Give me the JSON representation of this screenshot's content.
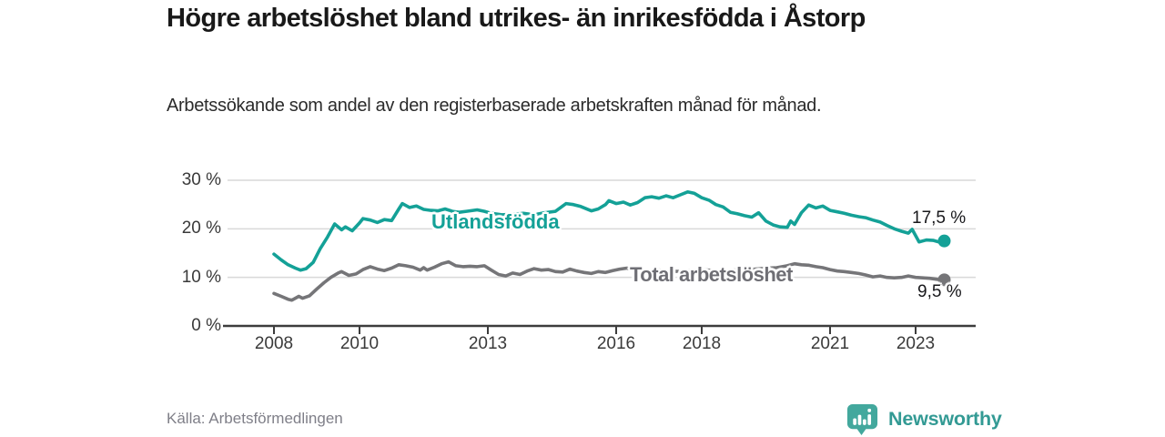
{
  "title": "Högre arbetslöshet bland utrikes- än inrikesfödda i Åstorp",
  "subtitle": "Arbetssökande som andel av den registerbaserade arbetskraften månad för månad.",
  "source": "Källa: Arbetsförmedlingen",
  "branding": {
    "name": "Newsworthy",
    "logo_icon": "bar-chart-speech-bubble-icon",
    "wordmark_color": "#339a94",
    "icon_color": "#43a89d"
  },
  "colors": {
    "foreign_born_line": "#14a197",
    "total_line": "#757578",
    "grid": "#d9d9d9",
    "axis": "#3d3d3d",
    "tick_text": "#3a3a3a",
    "end_label_text": "#17171a"
  },
  "chart_data": {
    "type": "line",
    "title": "Högre arbetslöshet bland utrikes- än inrikesfödda i Åstorp",
    "xlabel": "",
    "ylabel": "Arbetssökande som andel av den registerbaserade arbetskraften",
    "grid": true,
    "legend_position": "inline-labels",
    "ylim": [
      0,
      30
    ],
    "xlim": [
      2007.55,
      2024.35
    ],
    "yticks": [
      {
        "value": 0,
        "label": "0 %"
      },
      {
        "value": 10,
        "label": "10 %"
      },
      {
        "value": 20,
        "label": "20 %"
      },
      {
        "value": 30,
        "label": "30 %"
      }
    ],
    "xticks": [
      {
        "value": 2008,
        "label": "2008"
      },
      {
        "value": 2010,
        "label": "2010"
      },
      {
        "value": 2013,
        "label": "2013"
      },
      {
        "value": 2016,
        "label": "2016"
      },
      {
        "value": 2018,
        "label": "2018"
      },
      {
        "value": 2021,
        "label": "2021"
      },
      {
        "value": 2023,
        "label": "2023"
      }
    ],
    "series": [
      {
        "id": "utlandsfodda",
        "name": "Utlandsfödda",
        "color": "#14a197",
        "end_value_label": "17,5 %",
        "end_value": 17.5,
        "points": [
          [
            2008.0,
            14.8
          ],
          [
            2008.17,
            13.6
          ],
          [
            2008.33,
            12.6
          ],
          [
            2008.5,
            11.9
          ],
          [
            2008.62,
            11.5
          ],
          [
            2008.75,
            11.8
          ],
          [
            2008.92,
            13.1
          ],
          [
            2009.08,
            15.9
          ],
          [
            2009.25,
            18.3
          ],
          [
            2009.42,
            21.0
          ],
          [
            2009.58,
            19.8
          ],
          [
            2009.67,
            20.4
          ],
          [
            2009.83,
            19.6
          ],
          [
            2010.0,
            21.2
          ],
          [
            2010.08,
            22.1
          ],
          [
            2010.25,
            21.8
          ],
          [
            2010.42,
            21.3
          ],
          [
            2010.58,
            21.9
          ],
          [
            2010.75,
            21.7
          ],
          [
            2010.92,
            24.1
          ],
          [
            2011.0,
            25.2
          ],
          [
            2011.17,
            24.4
          ],
          [
            2011.33,
            24.7
          ],
          [
            2011.5,
            24.0
          ],
          [
            2011.67,
            23.8
          ],
          [
            2011.83,
            23.7
          ],
          [
            2012.0,
            24.1
          ],
          [
            2012.17,
            23.6
          ],
          [
            2012.33,
            23.4
          ],
          [
            2012.5,
            23.6
          ],
          [
            2012.75,
            23.9
          ],
          [
            2012.92,
            23.6
          ],
          [
            2013.08,
            23.2
          ],
          [
            2013.33,
            22.9
          ],
          [
            2013.58,
            23.0
          ],
          [
            2013.83,
            23.2
          ],
          [
            2014.08,
            22.9
          ],
          [
            2014.33,
            23.3
          ],
          [
            2014.58,
            23.6
          ],
          [
            2014.83,
            25.2
          ],
          [
            2015.0,
            25.0
          ],
          [
            2015.17,
            24.6
          ],
          [
            2015.42,
            23.7
          ],
          [
            2015.58,
            24.1
          ],
          [
            2015.75,
            25.0
          ],
          [
            2015.83,
            25.8
          ],
          [
            2016.0,
            25.2
          ],
          [
            2016.17,
            25.5
          ],
          [
            2016.33,
            24.9
          ],
          [
            2016.5,
            25.4
          ],
          [
            2016.67,
            26.4
          ],
          [
            2016.83,
            26.6
          ],
          [
            2017.0,
            26.3
          ],
          [
            2017.17,
            26.8
          ],
          [
            2017.33,
            26.4
          ],
          [
            2017.5,
            27.0
          ],
          [
            2017.67,
            27.6
          ],
          [
            2017.83,
            27.3
          ],
          [
            2018.0,
            26.4
          ],
          [
            2018.17,
            25.9
          ],
          [
            2018.33,
            25.0
          ],
          [
            2018.5,
            24.5
          ],
          [
            2018.67,
            23.4
          ],
          [
            2018.83,
            23.1
          ],
          [
            2019.0,
            22.7
          ],
          [
            2019.17,
            22.4
          ],
          [
            2019.33,
            23.3
          ],
          [
            2019.5,
            21.6
          ],
          [
            2019.67,
            20.8
          ],
          [
            2019.83,
            20.4
          ],
          [
            2020.0,
            20.3
          ],
          [
            2020.08,
            21.6
          ],
          [
            2020.17,
            20.9
          ],
          [
            2020.33,
            23.3
          ],
          [
            2020.5,
            24.9
          ],
          [
            2020.67,
            24.3
          ],
          [
            2020.83,
            24.7
          ],
          [
            2021.0,
            23.8
          ],
          [
            2021.17,
            23.5
          ],
          [
            2021.33,
            23.2
          ],
          [
            2021.5,
            22.8
          ],
          [
            2021.67,
            22.5
          ],
          [
            2021.83,
            22.3
          ],
          [
            2022.0,
            21.8
          ],
          [
            2022.17,
            21.4
          ],
          [
            2022.33,
            20.7
          ],
          [
            2022.5,
            20.0
          ],
          [
            2022.67,
            19.5
          ],
          [
            2022.83,
            19.1
          ],
          [
            2022.92,
            19.9
          ],
          [
            2023.08,
            17.3
          ],
          [
            2023.25,
            17.7
          ],
          [
            2023.42,
            17.6
          ],
          [
            2023.58,
            17.2
          ],
          [
            2023.67,
            17.5
          ]
        ]
      },
      {
        "id": "total",
        "name": "Total arbetslöshet",
        "color": "#757578",
        "end_value_label": "9,5 %",
        "end_value": 9.5,
        "points": [
          [
            2008.0,
            6.7
          ],
          [
            2008.17,
            6.1
          ],
          [
            2008.33,
            5.5
          ],
          [
            2008.42,
            5.3
          ],
          [
            2008.58,
            6.1
          ],
          [
            2008.67,
            5.7
          ],
          [
            2008.83,
            6.2
          ],
          [
            2009.0,
            7.6
          ],
          [
            2009.17,
            8.9
          ],
          [
            2009.33,
            10.0
          ],
          [
            2009.5,
            10.9
          ],
          [
            2009.58,
            11.2
          ],
          [
            2009.75,
            10.4
          ],
          [
            2009.92,
            10.7
          ],
          [
            2010.08,
            11.6
          ],
          [
            2010.25,
            12.2
          ],
          [
            2010.42,
            11.7
          ],
          [
            2010.58,
            11.4
          ],
          [
            2010.75,
            11.9
          ],
          [
            2010.92,
            12.6
          ],
          [
            2011.08,
            12.4
          ],
          [
            2011.25,
            12.1
          ],
          [
            2011.42,
            11.5
          ],
          [
            2011.5,
            12.0
          ],
          [
            2011.58,
            11.5
          ],
          [
            2011.75,
            12.1
          ],
          [
            2011.92,
            12.8
          ],
          [
            2012.08,
            13.2
          ],
          [
            2012.25,
            12.4
          ],
          [
            2012.42,
            12.2
          ],
          [
            2012.58,
            12.3
          ],
          [
            2012.75,
            12.2
          ],
          [
            2012.92,
            12.4
          ],
          [
            2013.08,
            11.5
          ],
          [
            2013.25,
            10.6
          ],
          [
            2013.42,
            10.3
          ],
          [
            2013.58,
            10.9
          ],
          [
            2013.75,
            10.6
          ],
          [
            2013.92,
            11.3
          ],
          [
            2014.08,
            11.8
          ],
          [
            2014.25,
            11.5
          ],
          [
            2014.42,
            11.6
          ],
          [
            2014.58,
            11.2
          ],
          [
            2014.75,
            11.1
          ],
          [
            2014.92,
            11.7
          ],
          [
            2015.08,
            11.3
          ],
          [
            2015.25,
            11.0
          ],
          [
            2015.42,
            10.8
          ],
          [
            2015.58,
            11.2
          ],
          [
            2015.75,
            11.0
          ],
          [
            2015.92,
            11.4
          ],
          [
            2016.08,
            11.7
          ],
          [
            2016.25,
            11.9
          ],
          [
            2016.42,
            11.5
          ],
          [
            2016.58,
            11.2
          ],
          [
            2016.75,
            11.3
          ],
          [
            2017.0,
            11.5
          ],
          [
            2017.25,
            11.3
          ],
          [
            2017.5,
            11.2
          ],
          [
            2017.75,
            11.4
          ],
          [
            2018.0,
            11.6
          ],
          [
            2018.25,
            11.4
          ],
          [
            2018.5,
            11.3
          ],
          [
            2018.75,
            11.5
          ],
          [
            2019.0,
            11.6
          ],
          [
            2019.25,
            11.7
          ],
          [
            2019.5,
            11.9
          ],
          [
            2019.75,
            12.0
          ],
          [
            2020.0,
            12.4
          ],
          [
            2020.17,
            12.8
          ],
          [
            2020.33,
            12.6
          ],
          [
            2020.5,
            12.5
          ],
          [
            2020.67,
            12.2
          ],
          [
            2020.83,
            12.0
          ],
          [
            2021.0,
            11.6
          ],
          [
            2021.17,
            11.3
          ],
          [
            2021.33,
            11.2
          ],
          [
            2021.5,
            11.0
          ],
          [
            2021.67,
            10.8
          ],
          [
            2021.83,
            10.5
          ],
          [
            2022.0,
            10.1
          ],
          [
            2022.17,
            10.3
          ],
          [
            2022.33,
            10.0
          ],
          [
            2022.5,
            9.9
          ],
          [
            2022.67,
            10.0
          ],
          [
            2022.83,
            10.3
          ],
          [
            2023.0,
            10.0
          ],
          [
            2023.17,
            9.9
          ],
          [
            2023.33,
            9.8
          ],
          [
            2023.5,
            9.6
          ],
          [
            2023.67,
            9.5
          ]
        ]
      }
    ]
  }
}
